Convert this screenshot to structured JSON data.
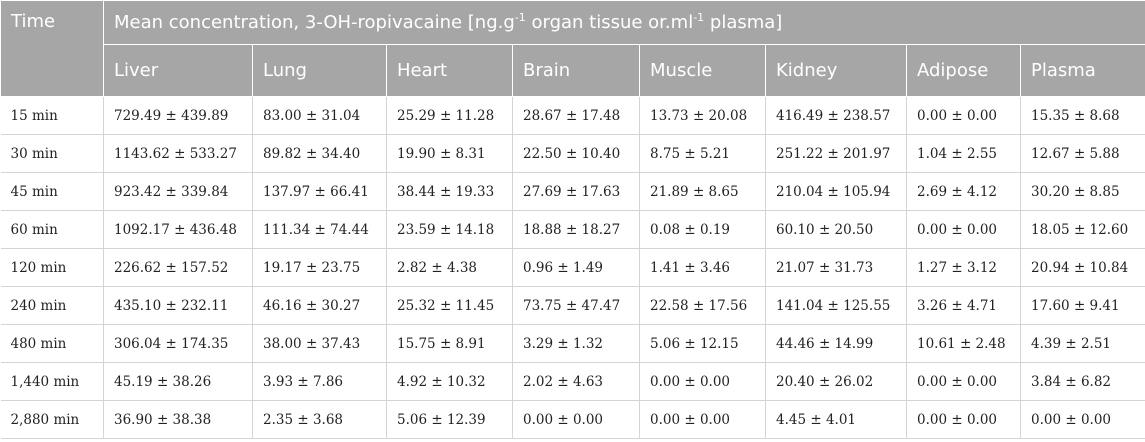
{
  "table": {
    "time_header": "Time",
    "group_header": {
      "prefix": "Mean concentration, 3-OH-ropivacaine [ng.g",
      "sup1": "-1",
      "middle": " organ tissue or.ml",
      "sup2": "-1",
      "suffix": " plasma]"
    },
    "columns": [
      "Liver",
      "Lung",
      "Heart",
      "Brain",
      "Muscle",
      "Kidney",
      "Adipose",
      "Plasma"
    ],
    "rows": [
      {
        "time": "15 min",
        "cells": [
          "729.49 ± 439.89",
          "83.00 ± 31.04",
          "25.29 ± 11.28",
          "28.67 ± 17.48",
          "13.73 ± 20.08",
          "416.49 ± 238.57",
          "0.00 ± 0.00",
          "15.35 ± 8.68"
        ]
      },
      {
        "time": "30 min",
        "cells": [
          "1143.62 ± 533.27",
          "89.82 ± 34.40",
          "19.90 ± 8.31",
          "22.50 ± 10.40",
          "8.75 ± 5.21",
          "251.22 ± 201.97",
          "1.04 ± 2.55",
          "12.67 ± 5.88"
        ]
      },
      {
        "time": "45 min",
        "cells": [
          "923.42 ± 339.84",
          "137.97 ± 66.41",
          "38.44 ± 19.33",
          "27.69 ± 17.63",
          "21.89 ± 8.65",
          "210.04 ± 105.94",
          "2.69 ± 4.12",
          "30.20 ± 8.85"
        ]
      },
      {
        "time": "60 min",
        "cells": [
          "1092.17 ± 436.48",
          "111.34 ± 74.44",
          "23.59 ± 14.18",
          "18.88 ± 18.27",
          "0.08 ± 0.19",
          "60.10 ± 20.50",
          "0.00 ± 0.00",
          "18.05 ± 12.60"
        ]
      },
      {
        "time": "120 min",
        "cells": [
          "226.62 ± 157.52",
          "19.17 ± 23.75",
          "2.82 ± 4.38",
          "0.96 ± 1.49",
          "1.41 ± 3.46",
          "21.07 ± 31.73",
          "1.27 ± 3.12",
          "20.94 ± 10.84"
        ]
      },
      {
        "time": "240 min",
        "cells": [
          "435.10 ± 232.11",
          "46.16 ± 30.27",
          "25.32 ± 11.45",
          "73.75 ± 47.47",
          "22.58 ± 17.56",
          "141.04 ± 125.55",
          "3.26 ± 4.71",
          "17.60 ± 9.41"
        ]
      },
      {
        "time": "480 min",
        "cells": [
          "306.04 ± 174.35",
          "38.00 ± 37.43",
          "15.75 ± 8.91",
          "3.29 ± 1.32",
          "5.06 ± 12.15",
          "44.46 ± 14.99",
          "10.61 ± 2.48",
          "4.39 ± 2.51"
        ]
      },
      {
        "time": "1,440 min",
        "cells": [
          "45.19 ± 38.26",
          "3.93 ± 7.86",
          "4.92 ± 10.32",
          "2.02 ± 4.63",
          "0.00 ± 0.00",
          "20.40 ± 26.02",
          "0.00 ± 0.00",
          "3.84 ± 6.82"
        ]
      },
      {
        "time": "2,880 min",
        "cells": [
          "36.90 ± 38.38",
          "2.35 ± 3.68",
          "5.06 ± 12.39",
          "0.00 ± 0.00",
          "0.00 ± 0.00",
          "4.45 ± 4.01",
          "0.00 ± 0.00",
          "0.00 ± 0.00"
        ]
      }
    ]
  }
}
